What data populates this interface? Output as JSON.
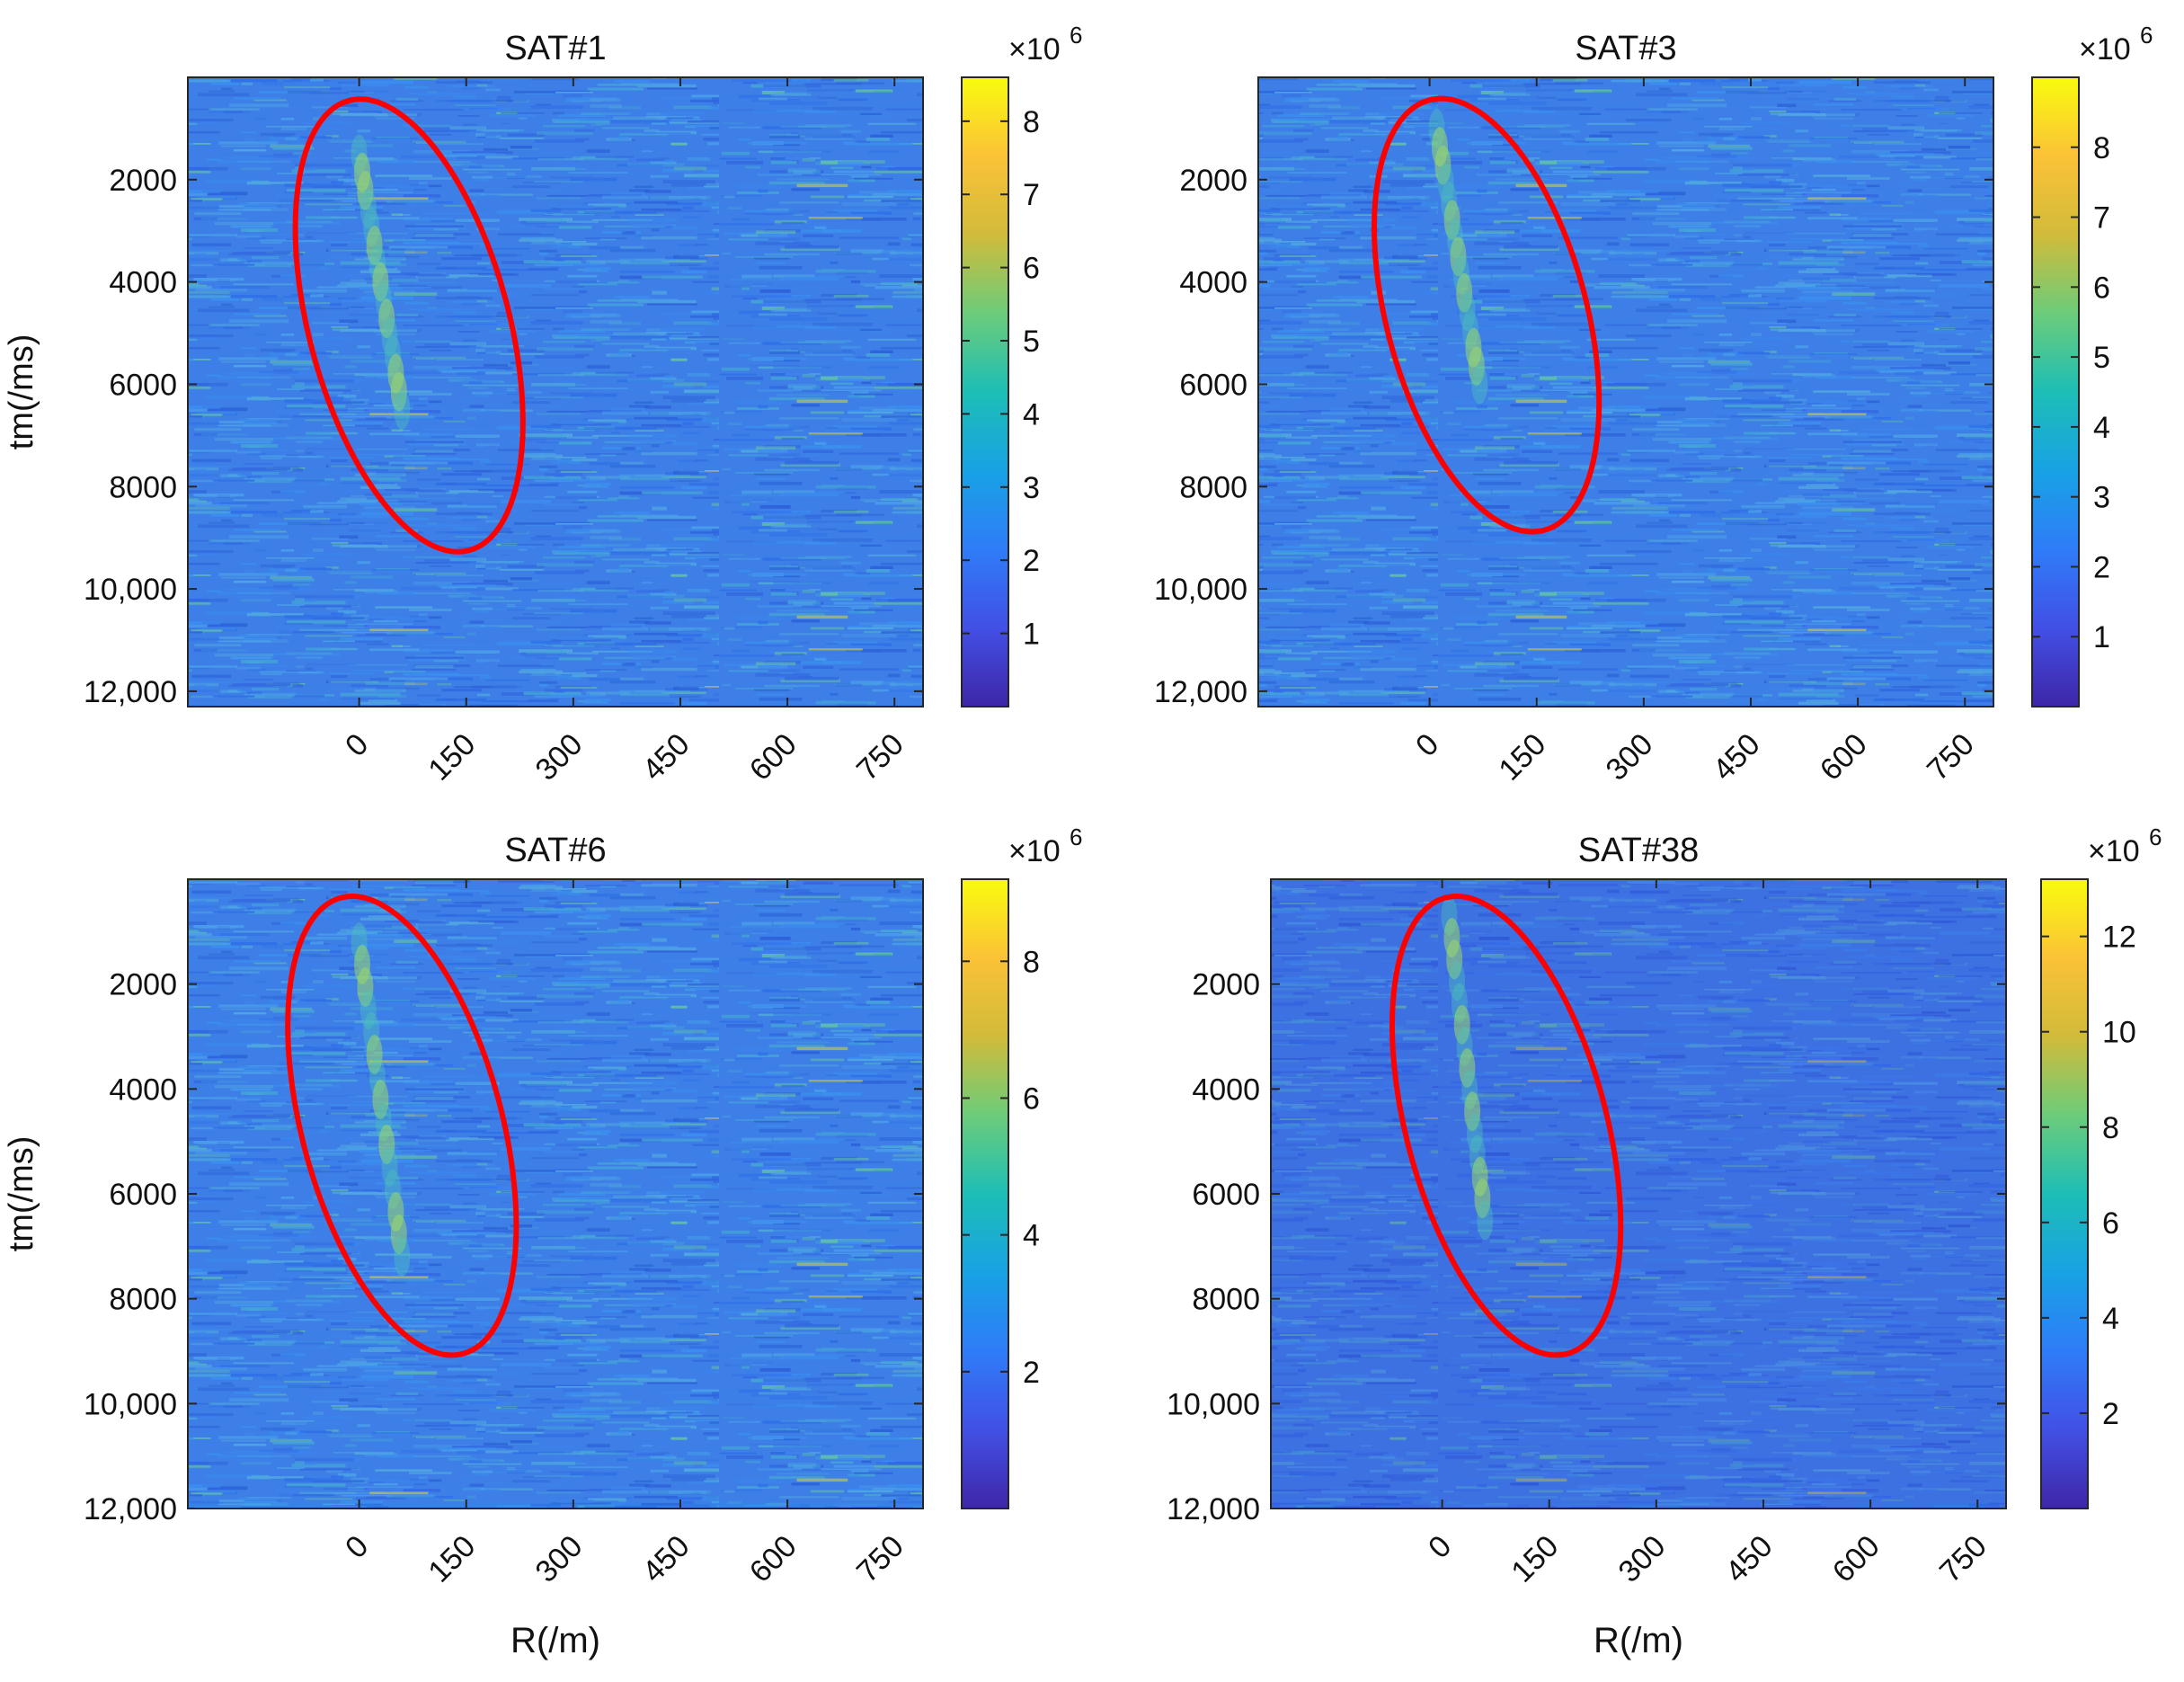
{
  "figure": {
    "xlabel": "R(/m)",
    "ylabel": "tm(/ms)",
    "colormap": "parula",
    "colormap_stops": [
      "#3e26a8",
      "#4250e5",
      "#2f7cf8",
      "#18a2e4",
      "#1dbeb6",
      "#6ccc7a",
      "#d1bb3a",
      "#fbc237",
      "#f9fb0e"
    ],
    "highlight_color": "#ff0000"
  },
  "chart_data": [
    {
      "type": "heatmap",
      "title": "SAT#1",
      "xlabel": "",
      "ylabel": "tm(/ms)",
      "x_ticks": [
        0,
        150,
        300,
        450,
        600,
        750
      ],
      "y_ticks": [
        2000,
        4000,
        6000,
        8000,
        10000,
        12000
      ],
      "y_tick_labels": [
        "2000",
        "4000",
        "6000",
        "8000",
        "10,000",
        "12,000"
      ],
      "xlim": [
        -240,
        790
      ],
      "ylim": [
        0,
        12300
      ],
      "y_reversed": true,
      "colorbar": {
        "exponent_label": "×10",
        "exponent": "6",
        "ticks": [
          1,
          2,
          3,
          4,
          5,
          6,
          7,
          8
        ],
        "range": [
          0,
          8.6
        ]
      },
      "signal_track": {
        "start": [
          0,
          1500
        ],
        "end": [
          60,
          6500
        ],
        "peak_value": 6
      },
      "highlight_ellipse": {
        "center": [
          70,
          4850
        ],
        "semi_axis_x": 140,
        "semi_axis_y": 4550
      }
    },
    {
      "type": "heatmap",
      "title": "SAT#3",
      "xlabel": "",
      "ylabel": "",
      "x_ticks": [
        0,
        150,
        300,
        450,
        600,
        750
      ],
      "y_ticks": [
        2000,
        4000,
        6000,
        8000,
        10000,
        12000
      ],
      "y_tick_labels": [
        "2000",
        "4000",
        "6000",
        "8000",
        "10,000",
        "12,000"
      ],
      "xlim": [
        -240,
        790
      ],
      "ylim": [
        0,
        12300
      ],
      "y_reversed": true,
      "colorbar": {
        "exponent_label": "×10",
        "exponent": "6",
        "ticks": [
          1,
          2,
          3,
          4,
          5,
          6,
          7,
          8
        ],
        "range": [
          0,
          9
        ]
      },
      "signal_track": {
        "start": [
          10,
          1000
        ],
        "end": [
          70,
          6000
        ],
        "peak_value": 5
      },
      "highlight_ellipse": {
        "center": [
          80,
          4650
        ],
        "semi_axis_x": 140,
        "semi_axis_y": 4350
      }
    },
    {
      "type": "heatmap",
      "title": "SAT#6",
      "xlabel": "R(/m)",
      "ylabel": "tm(/ms)",
      "x_ticks": [
        0,
        150,
        300,
        450,
        600,
        750
      ],
      "y_ticks": [
        2000,
        4000,
        6000,
        8000,
        10000,
        12000
      ],
      "y_tick_labels": [
        "2000",
        "4000",
        "6000",
        "8000",
        "10,000",
        "12,000"
      ],
      "xlim": [
        -240,
        790
      ],
      "ylim": [
        0,
        12000
      ],
      "y_reversed": true,
      "colorbar": {
        "exponent_label": "×10",
        "exponent": "6",
        "ticks": [
          2,
          4,
          6,
          8
        ],
        "range": [
          0,
          9.2
        ]
      },
      "signal_track": {
        "start": [
          0,
          1200
        ],
        "end": [
          60,
          7200
        ],
        "peak_value": 6
      },
      "highlight_ellipse": {
        "center": [
          60,
          4700
        ],
        "semi_axis_x": 140,
        "semi_axis_y": 4500
      }
    },
    {
      "type": "heatmap",
      "title": "SAT#38",
      "xlabel": "R(/m)",
      "ylabel": "",
      "x_ticks": [
        0,
        150,
        300,
        450,
        600,
        750
      ],
      "y_ticks": [
        2000,
        4000,
        6000,
        8000,
        10000,
        12000
      ],
      "y_tick_labels": [
        "2000",
        "4000",
        "6000",
        "8000",
        "10,000",
        "12,000"
      ],
      "xlim": [
        -240,
        790
      ],
      "ylim": [
        0,
        12000
      ],
      "y_reversed": true,
      "colorbar": {
        "exponent_label": "×10",
        "exponent": "6",
        "ticks": [
          2,
          4,
          6,
          8,
          10,
          12
        ],
        "range": [
          0,
          13.2
        ]
      },
      "signal_track": {
        "start": [
          10,
          700
        ],
        "end": [
          60,
          6500
        ],
        "peak_value": 8
      },
      "highlight_ellipse": {
        "center": [
          90,
          4700
        ],
        "semi_axis_x": 140,
        "semi_axis_y": 4500
      }
    }
  ]
}
